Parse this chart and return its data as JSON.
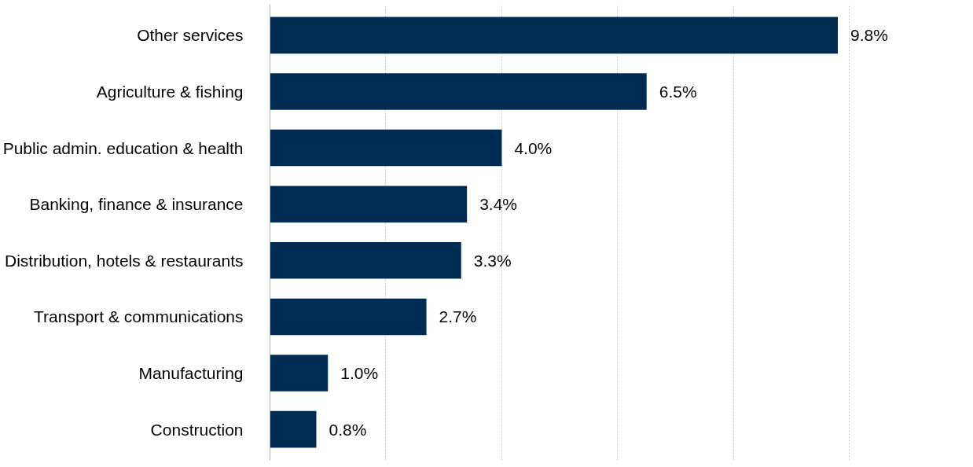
{
  "chart_data": {
    "type": "bar",
    "orientation": "horizontal",
    "categories": [
      "Other services",
      "Agriculture & fishing",
      "Public admin. education & health",
      "Banking, finance & insurance",
      "Distribution, hotels & restaurants",
      "Transport & communications",
      "Manufacturing",
      "Construction"
    ],
    "values": [
      9.8,
      6.5,
      4.0,
      3.4,
      3.3,
      2.7,
      1.0,
      0.8
    ],
    "value_labels": [
      "9.8%",
      "6.5%",
      "4.0%",
      "3.4%",
      "3.3%",
      "2.7%",
      "1.0%",
      "0.8%"
    ],
    "color": "#002c54",
    "xticks": [
      {
        "value": 2,
        "label": null
      },
      {
        "value": 4,
        "label": null
      },
      {
        "value": 6,
        "label": null
      },
      {
        "value": 8,
        "label": null
      },
      {
        "value": 10,
        "label": null
      }
    ],
    "grid": "x",
    "tick_labels": "y"
  }
}
